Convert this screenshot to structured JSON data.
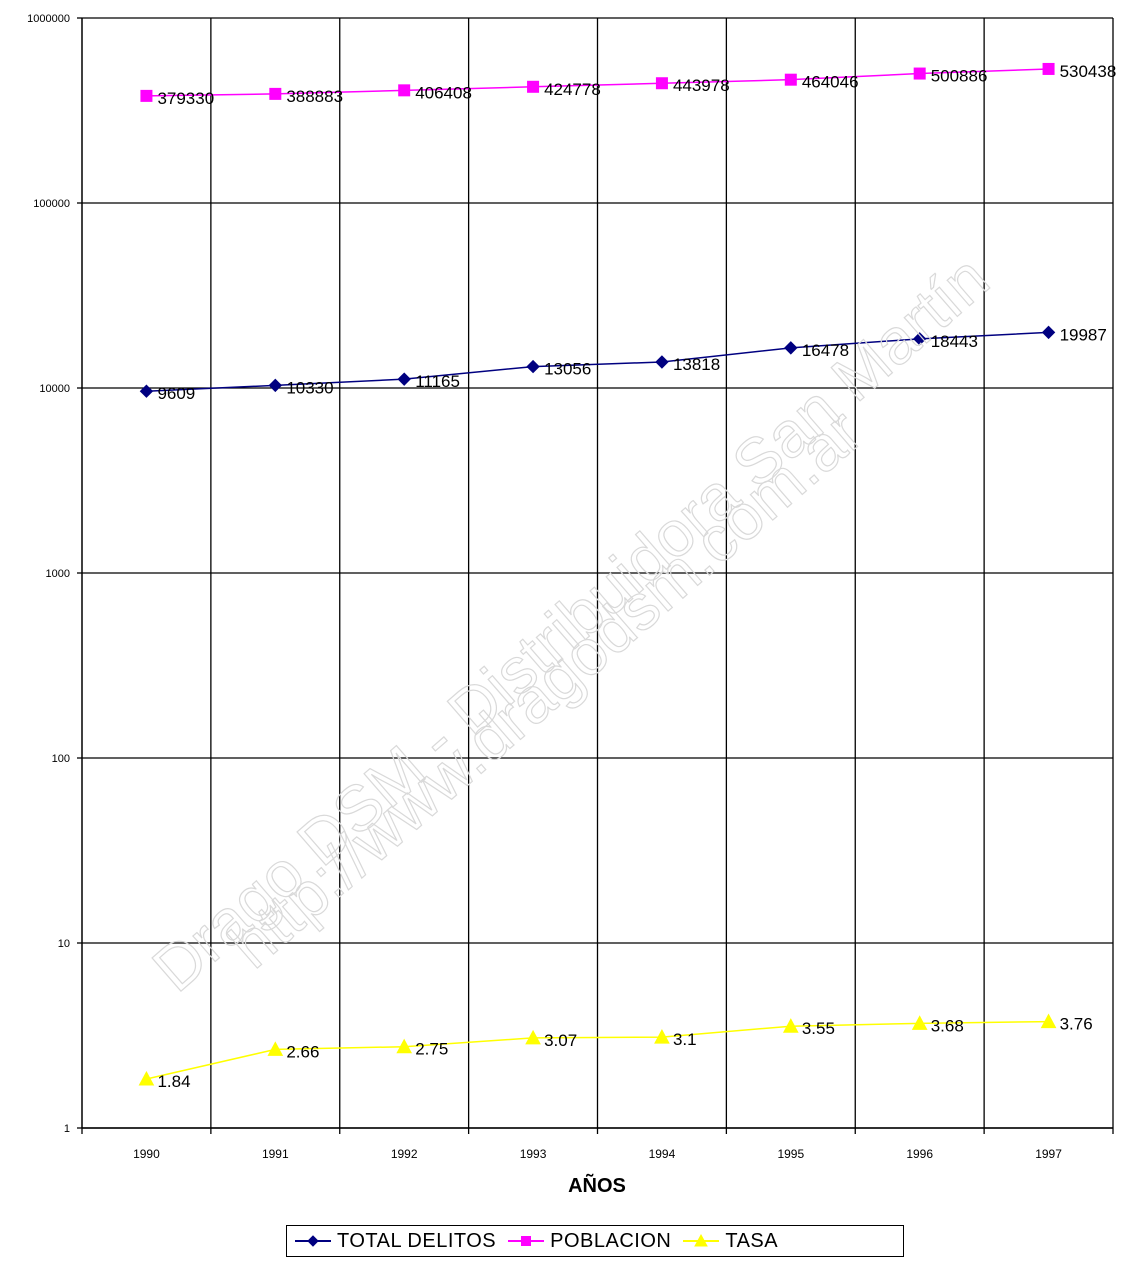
{
  "chart_data": {
    "type": "line",
    "y_scale": "log",
    "ylim": [
      1,
      1000000
    ],
    "y_ticks": [
      1,
      10,
      100,
      1000,
      10000,
      100000,
      1000000
    ],
    "y_tick_labels": [
      "1",
      "10",
      "100",
      "1000",
      "10000",
      "100000",
      "1000000"
    ],
    "x": [
      "1990",
      "1991",
      "1992",
      "1993",
      "1994",
      "1995",
      "1996",
      "1997"
    ],
    "xlabel": "AÑOS",
    "grid": true,
    "legend_position": "bottom",
    "series": [
      {
        "name": "TOTAL DELITOS",
        "color": "#000080",
        "marker": "diamond",
        "values": [
          9609,
          10330,
          11165,
          13056,
          13818,
          16478,
          18443,
          19987
        ],
        "labels": [
          "9609",
          "10330",
          "11165",
          "13056",
          "13818",
          "16478",
          "18443",
          "19987"
        ]
      },
      {
        "name": "POBLACION",
        "color": "#ff00ff",
        "marker": "square",
        "values": [
          379330,
          388883,
          406408,
          424778,
          443978,
          464046,
          500886,
          530438
        ],
        "labels": [
          "379330",
          "388883",
          "406408",
          "424778",
          "443978",
          "464046",
          "500886",
          "530438"
        ]
      },
      {
        "name": "TASA",
        "color": "#ffff00",
        "marker": "triangle",
        "values": [
          1.84,
          2.66,
          2.75,
          3.07,
          3.1,
          3.55,
          3.68,
          3.76
        ],
        "labels": [
          "1.84",
          "2.66",
          "2.75",
          "3.07",
          "3.1",
          "3.55",
          "3.68",
          "3.76"
        ]
      }
    ]
  },
  "watermark": {
    "line1": "Drago DSM - Distribuidora San Martín",
    "line2": "http://www.dragodsm.com.ar"
  }
}
